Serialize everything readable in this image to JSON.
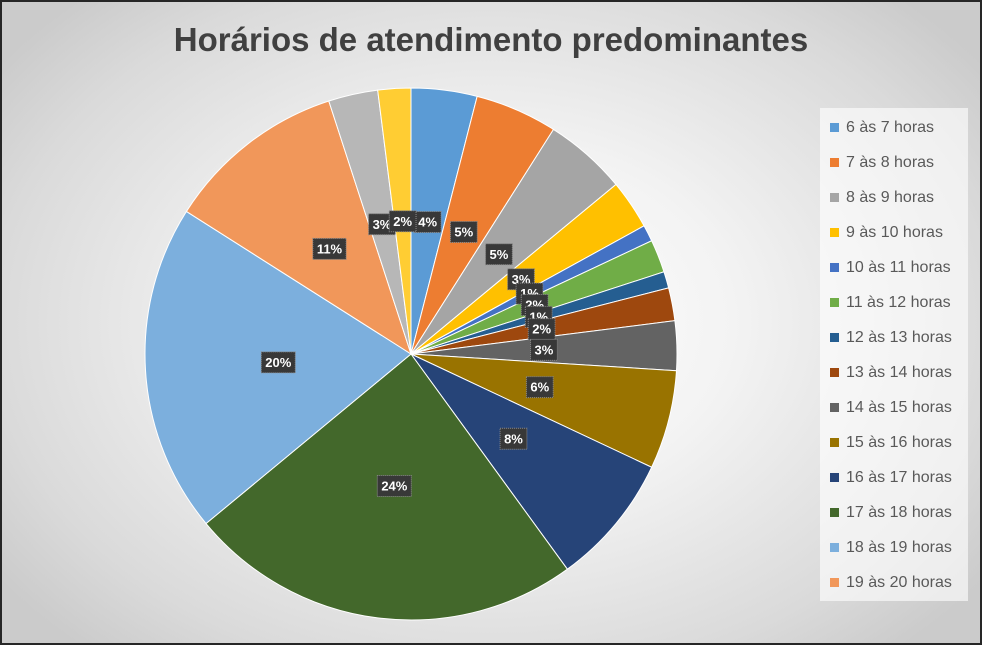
{
  "chart_data": {
    "type": "pie",
    "title": "Horários de atendimento predominantes",
    "legend_position": "right",
    "categories": [
      "6 às 7 horas",
      "7 às 8 horas",
      "8 às 9 horas",
      "9 às 10 horas",
      "10 às 11 horas",
      "11 às 12 horas",
      "12 às 13 horas",
      "13 às 14 horas",
      "14 às 15 horas",
      "15 às 16 horas",
      "16 às 17 horas",
      "17 às 18 horas",
      "18 às 19 horas",
      "19 às 20 horas",
      "",
      ""
    ],
    "values": [
      4,
      5,
      5,
      3,
      1,
      2,
      1,
      2,
      3,
      6,
      8,
      24,
      20,
      11,
      3,
      2
    ],
    "data_labels": [
      "4%",
      "5%",
      "5%",
      "3%",
      "1%",
      "2%",
      "1%",
      "2%",
      "3%",
      "6%",
      "8%",
      "24%",
      "20%",
      "11%",
      "3%",
      "2%"
    ],
    "colors": [
      "#5B9BD5",
      "#ED7D31",
      "#A5A5A5",
      "#FFC000",
      "#4472C4",
      "#70AD47",
      "#255E91",
      "#9E480E",
      "#636363",
      "#997300",
      "#264478",
      "#43682B",
      "#7CAFDD",
      "#F1975A",
      "#B7B7B7",
      "#FFCD33"
    ]
  }
}
